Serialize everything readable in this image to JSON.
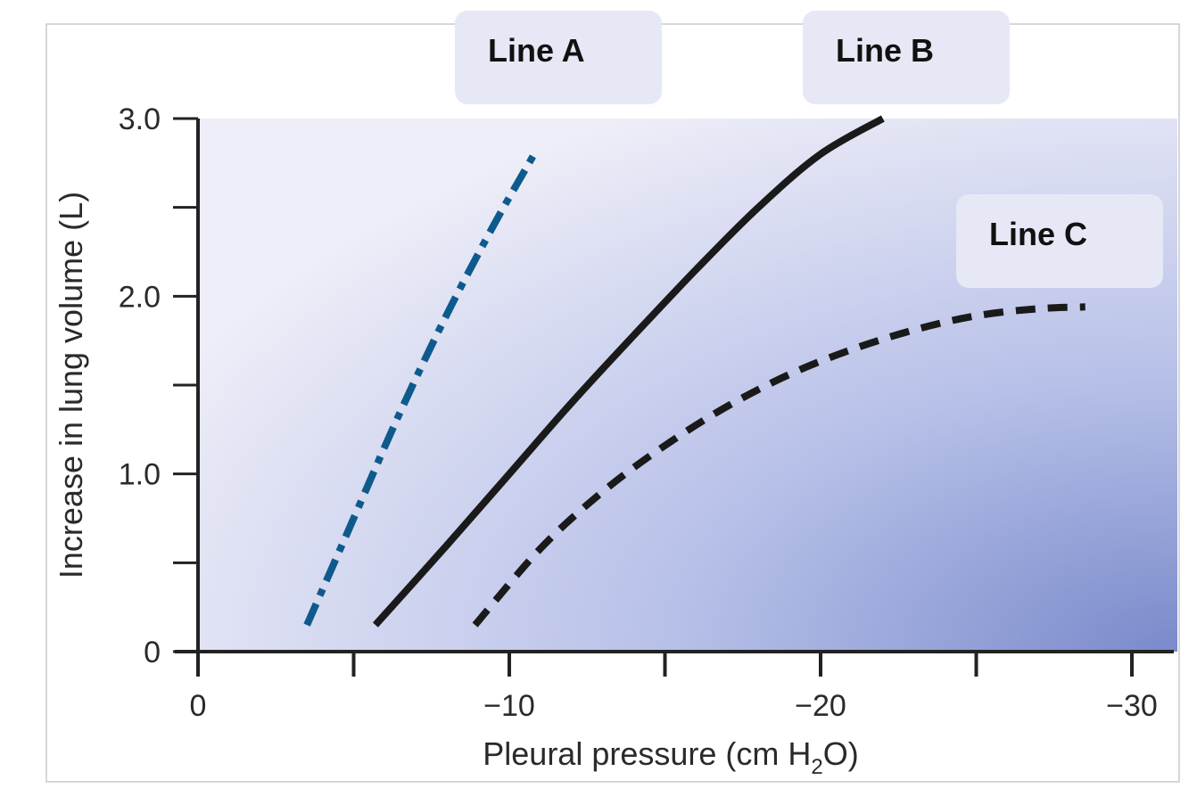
{
  "chart_data": {
    "type": "line",
    "xlabel_main": "Pleural pressure (cm H",
    "xlabel_sub": "2",
    "xlabel_end": "O)",
    "ylabel": "Increase in lung volume (L)",
    "xlim": [
      0,
      -31
    ],
    "ylim": [
      0,
      3.0
    ],
    "x_ticks": [
      0,
      -5,
      -10,
      -15,
      -20,
      -25,
      -30
    ],
    "x_tick_labels": [
      "0",
      "",
      "−10",
      "",
      "−20",
      "",
      "−30"
    ],
    "y_ticks": [
      0,
      0.5,
      1.0,
      1.5,
      2.0,
      2.5,
      3.0
    ],
    "y_tick_labels": [
      "0",
      "",
      "1.0",
      "",
      "2.0",
      "",
      "3.0"
    ],
    "series": [
      {
        "name": "Line A",
        "style": "dashdot",
        "color": "#0e5a8c",
        "x": [
          -3.5,
          -5.0,
          -6.5,
          -8.0,
          -9.5,
          -10.8
        ],
        "y": [
          0.15,
          0.75,
          1.35,
          1.9,
          2.4,
          2.8
        ]
      },
      {
        "name": "Line B",
        "style": "solid",
        "color": "#1a1a1a",
        "x": [
          -5.7,
          -8.0,
          -10.0,
          -12.0,
          -14.0,
          -16.0,
          -18.0,
          -20.0,
          -22.0
        ],
        "y": [
          0.15,
          0.6,
          1.0,
          1.4,
          1.78,
          2.15,
          2.5,
          2.8,
          3.0
        ]
      },
      {
        "name": "Line C",
        "style": "dashed",
        "color": "#1a1a1a",
        "x": [
          -8.9,
          -11.0,
          -13.0,
          -15.0,
          -17.0,
          -19.0,
          -21.0,
          -23.0,
          -25.0,
          -27.0,
          -28.5
        ],
        "y": [
          0.15,
          0.58,
          0.9,
          1.16,
          1.38,
          1.56,
          1.7,
          1.81,
          1.89,
          1.93,
          1.94
        ]
      }
    ],
    "labels": [
      "Line A",
      "Line B",
      "Line C"
    ],
    "grid": false,
    "colors": {
      "background_light": "#eeeef8",
      "background_dark": "#7e8ecd",
      "axis": "#222222"
    }
  }
}
